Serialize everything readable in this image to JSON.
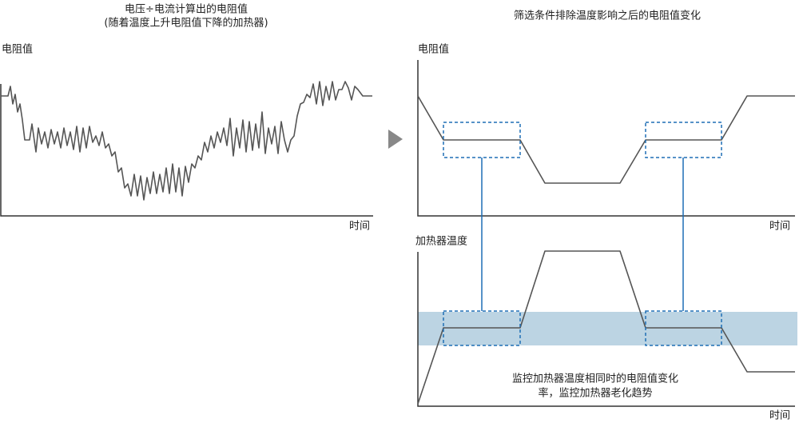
{
  "left": {
    "title": [
      "电压÷电流计算出的电阻值",
      "(随着温度上升电阻值下降的加热器)"
    ],
    "y_label": "电阻值",
    "x_label": "时间"
  },
  "right": {
    "title": "筛选条件排除温度影响之后的电阻值变化",
    "top": {
      "y_label": "电阻值",
      "x_label": "时间"
    },
    "bottom": {
      "y_label": "加热器温度",
      "x_label": "时间"
    },
    "note": [
      "监控加热器温度相同时的电阻值变化",
      "率，监控加热器老化趋势"
    ]
  }
}
